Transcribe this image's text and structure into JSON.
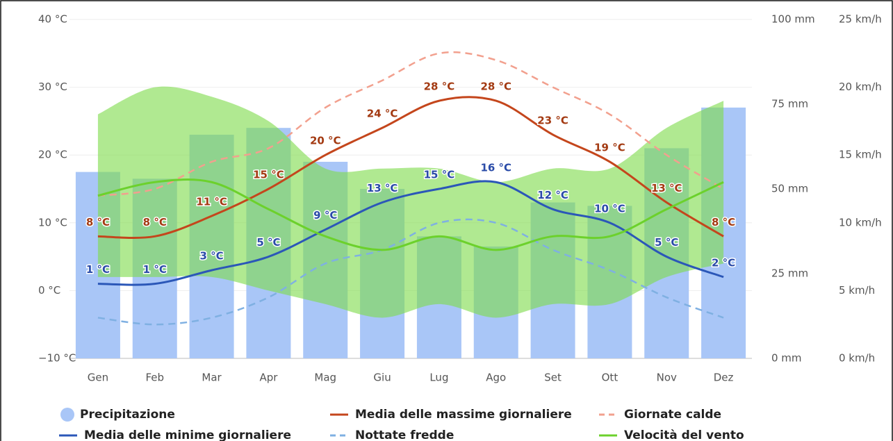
{
  "chart_data": {
    "type": "combo",
    "categories": [
      "Gen",
      "Feb",
      "Mar",
      "Apr",
      "Mag",
      "Giu",
      "Lug",
      "Ago",
      "Set",
      "Ott",
      "Nov",
      "Dez"
    ],
    "ylim": [
      -10,
      40
    ],
    "yticks": [
      {
        "value": -10,
        "label": "−10 °C"
      },
      {
        "value": 0,
        "label": "0 °C"
      },
      {
        "value": 10,
        "label": "10 °C"
      },
      {
        "value": 20,
        "label": "20 °C"
      },
      {
        "value": 30,
        "label": "30 °C"
      },
      {
        "value": 40,
        "label": "40 °C"
      }
    ],
    "y2lim": [
      0,
      100
    ],
    "y2ticks": [
      {
        "value": 0,
        "label": "0 mm"
      },
      {
        "value": 25,
        "label": "25 mm"
      },
      {
        "value": 50,
        "label": "50 mm"
      },
      {
        "value": 75,
        "label": "75 mm"
      },
      {
        "value": 100,
        "label": "100 mm"
      }
    ],
    "y3lim": [
      0,
      25
    ],
    "y3ticks": [
      {
        "value": 0,
        "label": "0 km/h"
      },
      {
        "value": 5,
        "label": "5 km/h"
      },
      {
        "value": 10,
        "label": "10 km/h"
      },
      {
        "value": 15,
        "label": "15 km/h"
      },
      {
        "value": 20,
        "label": "20 km/h"
      },
      {
        "value": 25,
        "label": "25 km/h"
      }
    ],
    "grid": true,
    "wind_range": {
      "color": "#7fdb4e",
      "axis": "y3",
      "high": [
        18,
        20,
        19.3,
        17.5,
        14,
        14,
        14,
        13,
        14,
        14,
        17,
        19
      ],
      "low": [
        6,
        6,
        6,
        5,
        4,
        3,
        4,
        3,
        4,
        4,
        6,
        7
      ]
    },
    "series": [
      {
        "name": "Precipitazione",
        "kind": "bar",
        "axis": "y2",
        "color": "#a9c6f7",
        "values": [
          55,
          53,
          66,
          68,
          58,
          50,
          36,
          33,
          46,
          45,
          62,
          74
        ]
      },
      {
        "name": "Media delle massime giornaliere",
        "kind": "line",
        "color": "#c4461c",
        "label_color": "#a33a12",
        "values": [
          8,
          8,
          11,
          15,
          20,
          24,
          28,
          28,
          23,
          19,
          13,
          8
        ],
        "value_labels": [
          "8 °C",
          "8 °C",
          "11 °C",
          "15 °C",
          "20 °C",
          "24 °C",
          "28 °C",
          "28 °C",
          "23 °C",
          "19 °C",
          "13 °C",
          "8 °C"
        ]
      },
      {
        "name": "Giornate calde",
        "kind": "line",
        "dashed": true,
        "color": "#f2a08e",
        "values": [
          14,
          15,
          19,
          21,
          27,
          31,
          35,
          34,
          30,
          26,
          20,
          15
        ]
      },
      {
        "name": "Media delle minime giornaliere",
        "kind": "line",
        "color": "#2b57b8",
        "label_color": "#2a4ba8",
        "values": [
          1,
          1,
          3,
          5,
          9,
          13,
          15,
          16,
          12,
          10,
          5,
          2
        ],
        "value_labels": [
          "1 °C",
          "1 °C",
          "3 °C",
          "5 °C",
          "9 °C",
          "13 °C",
          "15 °C",
          "16 °C",
          "12 °C",
          "10 °C",
          "5 °C",
          "2 °C"
        ]
      },
      {
        "name": "Nottate fredde",
        "kind": "line",
        "dashed": true,
        "color": "#7fb0e2",
        "values": [
          -4,
          -5,
          -4,
          -1,
          4,
          6,
          10,
          10,
          6,
          3,
          -1,
          -4
        ]
      },
      {
        "name": "Velocità del vento",
        "kind": "line",
        "axis": "y3",
        "color": "#6cd12c",
        "values": [
          12,
          13,
          13,
          11,
          9,
          8,
          9,
          8,
          9,
          9,
          11,
          13
        ]
      }
    ]
  }
}
